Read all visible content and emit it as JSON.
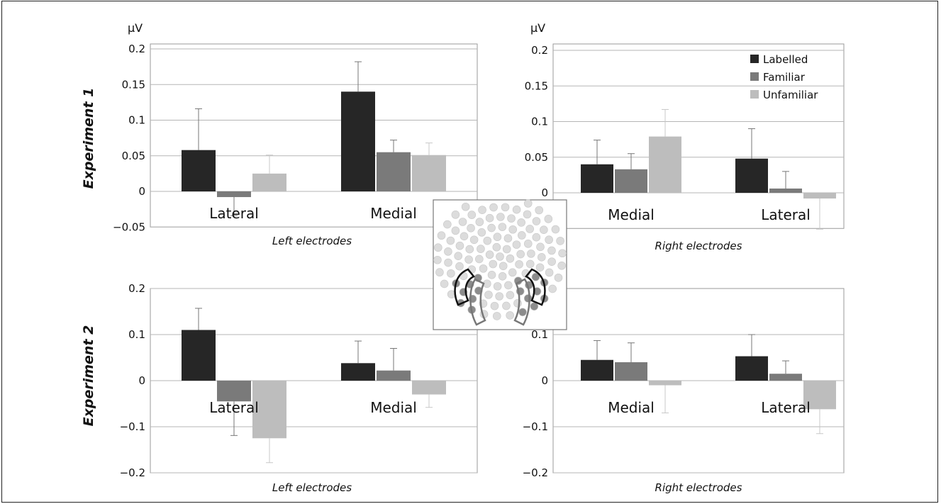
{
  "experiment_labels": [
    "Experiment 1",
    "Experiment 2"
  ],
  "legend": [
    {
      "label": "Labelled",
      "color": "#262626"
    },
    {
      "label": "Familiar",
      "color": "#7a7a7a"
    },
    {
      "label": "Unfamiliar",
      "color": "#bdbdbd"
    }
  ],
  "chart_data": [
    {
      "type": "bar",
      "experiment": "Experiment 1",
      "xlabel": "Left electrodes",
      "ylabel": "μV",
      "ylim": [
        -0.05,
        0.2
      ],
      "yticks": [
        "0.2",
        "0.15",
        "0.1",
        "0.05",
        "0",
        "−0.05"
      ],
      "yticks_values": [
        0.2,
        0.15,
        0.1,
        0.05,
        0,
        -0.05
      ],
      "categories": [
        "Lateral",
        "Medial"
      ],
      "series": [
        {
          "name": "Labelled",
          "values": [
            0.058,
            0.14
          ],
          "errors": [
            0.058,
            0.042
          ]
        },
        {
          "name": "Familiar",
          "values": [
            -0.008,
            0.055
          ],
          "errors": [
            0.026,
            0.017
          ]
        },
        {
          "name": "Unfamiliar",
          "values": [
            0.025,
            0.051
          ],
          "errors": [
            0.026,
            0.017
          ]
        }
      ],
      "grid": true
    },
    {
      "type": "bar",
      "experiment": "Experiment 1",
      "xlabel": "Right electrodes",
      "ylabel": "μV",
      "ylim": [
        -0.05,
        0.2
      ],
      "yticks": [
        "0.2",
        "0.15",
        "0.1",
        "0.05",
        "0"
      ],
      "yticks_values": [
        0.2,
        0.15,
        0.1,
        0.05,
        0
      ],
      "categories": [
        "Medial",
        "Lateral"
      ],
      "series": [
        {
          "name": "Labelled",
          "values": [
            0.04,
            0.048
          ],
          "errors": [
            0.034,
            0.042
          ]
        },
        {
          "name": "Familiar",
          "values": [
            0.033,
            0.006
          ],
          "errors": [
            0.022,
            0.024
          ]
        },
        {
          "name": "Unfamiliar",
          "values": [
            0.079,
            -0.008
          ],
          "errors": [
            0.038,
            0.043
          ]
        }
      ],
      "legend": "top-right",
      "grid": true
    },
    {
      "type": "bar",
      "experiment": "Experiment 2",
      "xlabel": "Left electrodes",
      "ylim": [
        -0.2,
        0.2
      ],
      "yticks": [
        "0.2",
        "0.1",
        "0",
        "−0.1",
        "−0.2"
      ],
      "yticks_values": [
        0.2,
        0.1,
        0,
        -0.1,
        -0.2
      ],
      "categories": [
        "Lateral",
        "Medial"
      ],
      "series": [
        {
          "name": "Labelled",
          "values": [
            0.11,
            0.038
          ],
          "errors": [
            0.047,
            0.048
          ]
        },
        {
          "name": "Familiar",
          "values": [
            -0.045,
            0.022
          ],
          "errors": [
            0.074,
            0.048
          ]
        },
        {
          "name": "Unfamiliar",
          "values": [
            -0.125,
            -0.03
          ],
          "errors": [
            0.053,
            0.028
          ]
        }
      ],
      "grid": true
    },
    {
      "type": "bar",
      "experiment": "Experiment 2",
      "xlabel": "Right electrodes",
      "ylim": [
        -0.2,
        0.2
      ],
      "yticks": [
        "0.1",
        "0",
        "−0.1",
        "−0.2"
      ],
      "yticks_values": [
        0.1,
        0,
        -0.1,
        -0.2
      ],
      "categories": [
        "Medial",
        "Lateral"
      ],
      "series": [
        {
          "name": "Labelled",
          "values": [
            0.045,
            0.053
          ],
          "errors": [
            0.042,
            0.047
          ]
        },
        {
          "name": "Familiar",
          "values": [
            0.04,
            0.015
          ],
          "errors": [
            0.042,
            0.028
          ]
        },
        {
          "name": "Unfamiliar",
          "values": [
            -0.01,
            -0.062
          ],
          "errors": [
            0.06,
            0.053
          ]
        }
      ],
      "grid": true
    }
  ]
}
